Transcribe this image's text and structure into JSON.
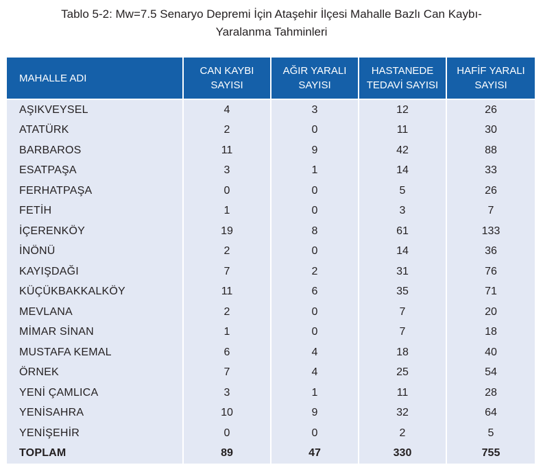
{
  "caption": {
    "line1": "Tablo 5-2: Mw=7.5 Senaryo Depremi İçin Ataşehir İlçesi Mahalle Bazlı Can Kaybı-",
    "line2": "Yaralanma Tahminleri"
  },
  "table": {
    "headers": [
      {
        "line1": "MAHALLE ADI",
        "line2": ""
      },
      {
        "line1": "CAN KAYBI",
        "line2": "SAYISI"
      },
      {
        "line1": "AĞIR YARALI",
        "line2": "SAYISI"
      },
      {
        "line1": "HASTANEDE",
        "line2": "TEDAVİ SAYISI"
      },
      {
        "line1": "HAFİF YARALI",
        "line2": "SAYISI"
      }
    ],
    "rows": [
      [
        "AŞIKVEYSEL",
        "4",
        "3",
        "12",
        "26"
      ],
      [
        "ATATÜRK",
        "2",
        "0",
        "11",
        "30"
      ],
      [
        "BARBAROS",
        "11",
        "9",
        "42",
        "88"
      ],
      [
        "ESATPAŞA",
        "3",
        "1",
        "14",
        "33"
      ],
      [
        "FERHATPAŞA",
        "0",
        "0",
        "5",
        "26"
      ],
      [
        "FETİH",
        "1",
        "0",
        "3",
        "7"
      ],
      [
        "İÇERENKÖY",
        "19",
        "8",
        "61",
        "133"
      ],
      [
        "İNÖNÜ",
        "2",
        "0",
        "14",
        "36"
      ],
      [
        "KAYIŞDAĞI",
        "7",
        "2",
        "31",
        "76"
      ],
      [
        "KÜÇÜKBAKKALKÖY",
        "11",
        "6",
        "35",
        "71"
      ],
      [
        "MEVLANA",
        "2",
        "0",
        "7",
        "20"
      ],
      [
        "MİMAR SİNAN",
        "1",
        "0",
        "7",
        "18"
      ],
      [
        "MUSTAFA KEMAL",
        "6",
        "4",
        "18",
        "40"
      ],
      [
        "ÖRNEK",
        "7",
        "4",
        "25",
        "54"
      ],
      [
        "YENİ ÇAMLICA",
        "3",
        "1",
        "11",
        "28"
      ],
      [
        "YENİSAHRA",
        "10",
        "9",
        "32",
        "64"
      ],
      [
        "YENİŞEHİR",
        "0",
        "0",
        "2",
        "5"
      ]
    ],
    "total": [
      "TOPLAM",
      "89",
      "47",
      "330",
      "755"
    ]
  },
  "colors": {
    "header_bg": "#1560a9",
    "row_bg": "#e3e8f4"
  }
}
